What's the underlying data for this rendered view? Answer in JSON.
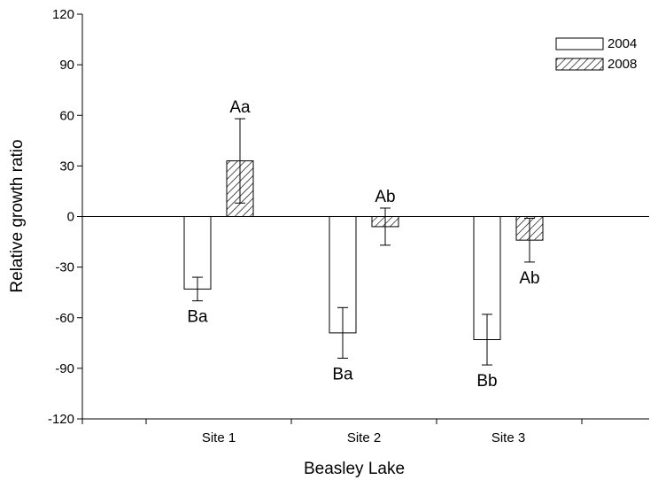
{
  "chart_data": {
    "type": "bar",
    "title": "",
    "xlabel": "Beasley Lake",
    "ylabel": "Relative growth ratio",
    "categories": [
      "Site 1",
      "Site 2",
      "Site 3"
    ],
    "ylim": [
      -120,
      120
    ],
    "yticks": [
      -120,
      -90,
      -60,
      -30,
      0,
      30,
      60,
      90,
      120
    ],
    "grid": false,
    "legend_position": "top-right",
    "series": [
      {
        "name": "2004",
        "fill": "white",
        "values": [
          -43,
          -69,
          -73
        ],
        "errors": [
          7,
          15,
          15
        ],
        "labels": [
          "Ba",
          "Ba",
          "Bb"
        ]
      },
      {
        "name": "2008",
        "fill": "hatched",
        "values": [
          33,
          -6,
          -14
        ],
        "errors": [
          25,
          11,
          13
        ],
        "labels": [
          "Aa",
          "Ab",
          "Ab"
        ]
      }
    ]
  }
}
